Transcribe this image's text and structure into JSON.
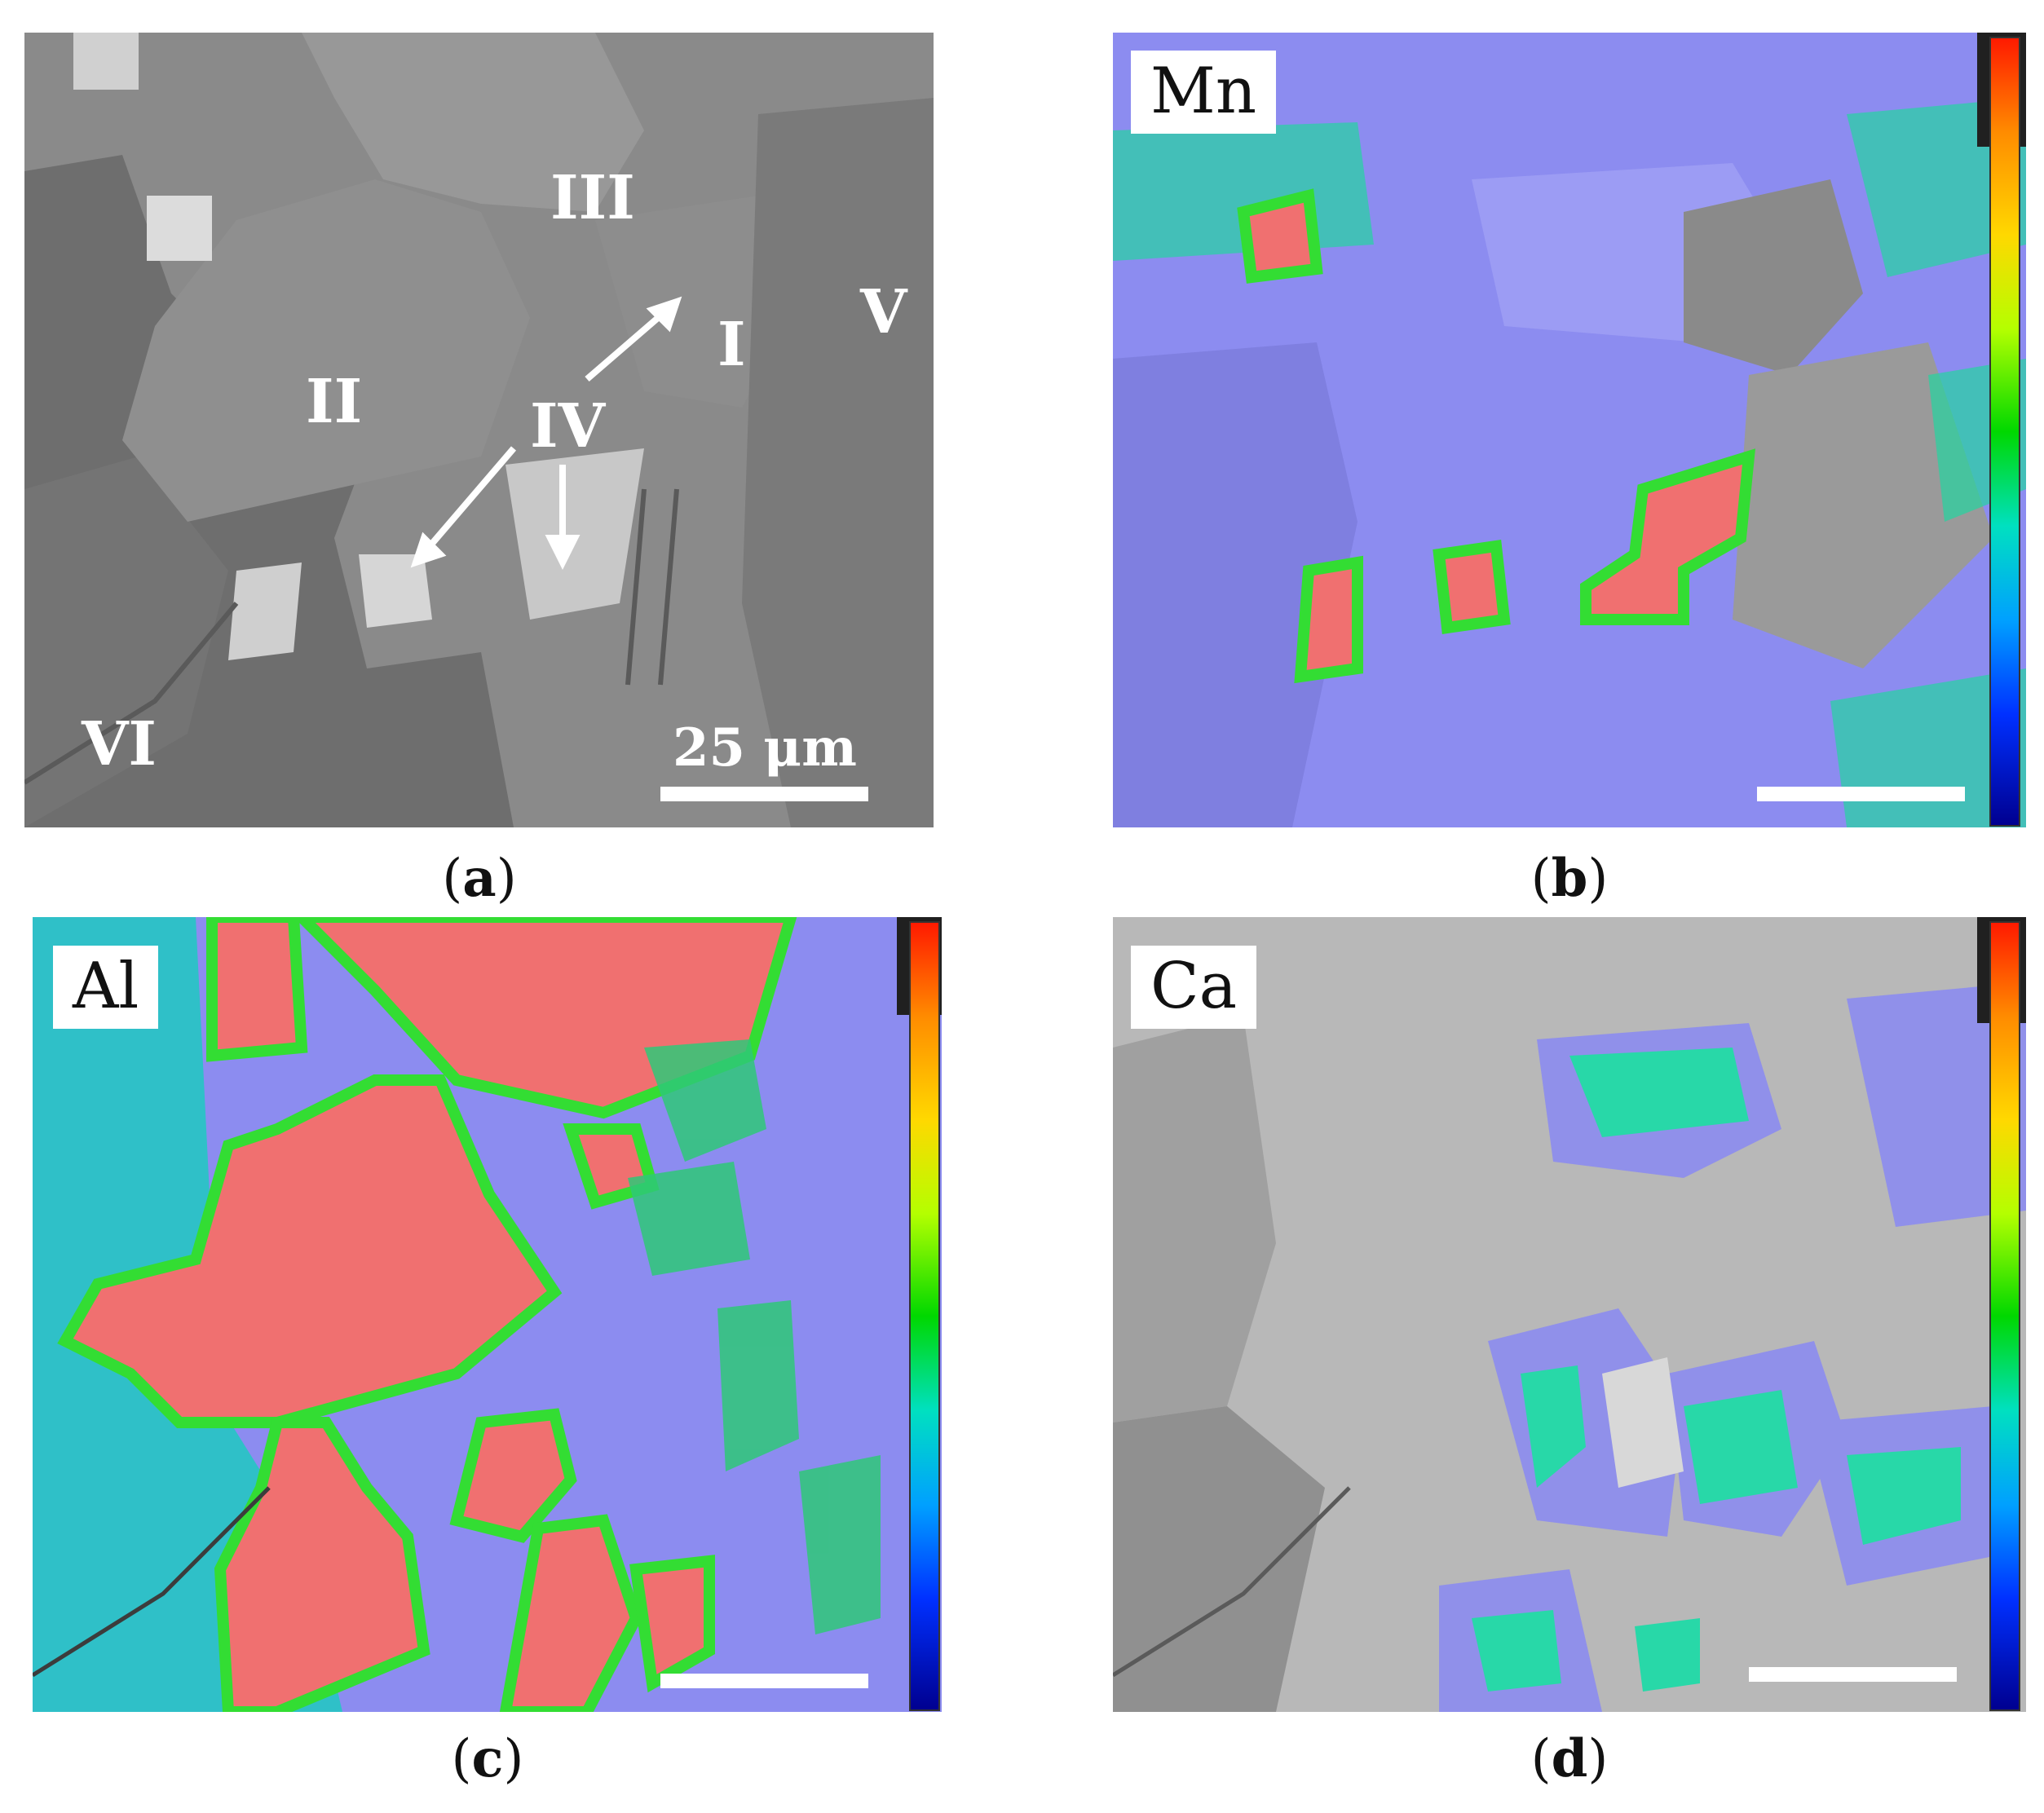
{
  "panels": {
    "a": {
      "caption_letter": "a",
      "regions": {
        "r1": "I",
        "r2": "II",
        "r3": "III",
        "r4": "IV",
        "r5": "V",
        "r6": "VI"
      },
      "scale_label": "25 μm"
    },
    "b": {
      "caption_letter": "b",
      "element": "Mn"
    },
    "c": {
      "caption_letter": "c",
      "element": "Al"
    },
    "d": {
      "caption_letter": "d",
      "element": "Ca"
    }
  },
  "colors": {
    "sem_gray": "#8a8a8a",
    "map_background": "#8c8cf0",
    "high_concentration": "#f07070",
    "gray_phase": "#b8b8b8"
  },
  "icons": [
    "arrow-icon",
    "colorbar-gradient"
  ]
}
